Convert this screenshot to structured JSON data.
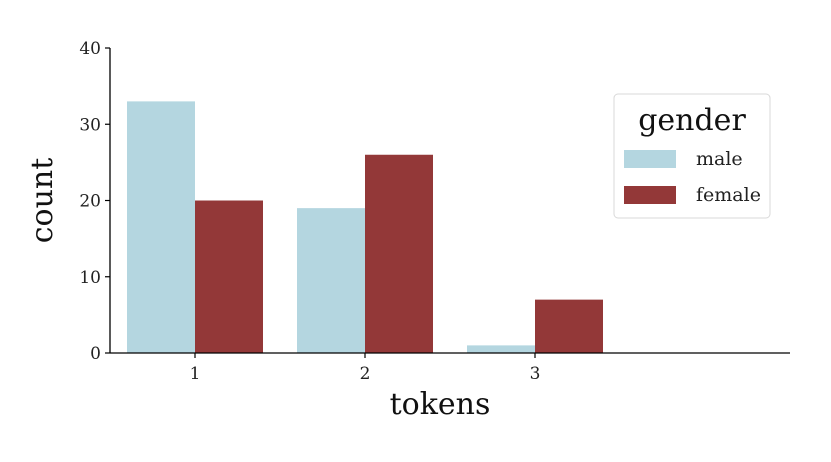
{
  "chart_data": {
    "type": "bar",
    "xlabel": "tokens",
    "ylabel": "count",
    "categories": [
      "1",
      "2",
      "3"
    ],
    "series": [
      {
        "name": "male",
        "values": [
          33,
          19,
          1
        ],
        "color": "#b4d6e0"
      },
      {
        "name": "female",
        "values": [
          20,
          26,
          7
        ],
        "color": "#933838"
      }
    ],
    "ylim": [
      0,
      40
    ],
    "yticks": [
      0,
      10,
      20,
      30,
      40
    ],
    "xlim": [
      0.5,
      4.5
    ],
    "grid": false,
    "legend": {
      "title": "gender",
      "placement": "top-right"
    }
  }
}
